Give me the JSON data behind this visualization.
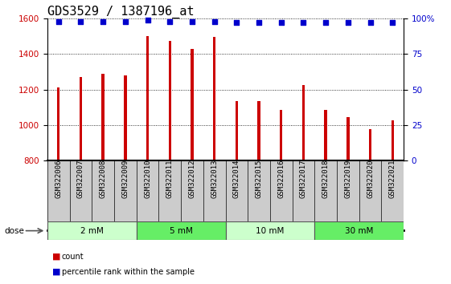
{
  "title": "GDS3529 / 1387196_at",
  "samples": [
    "GSM322006",
    "GSM322007",
    "GSM322008",
    "GSM322009",
    "GSM322010",
    "GSM322011",
    "GSM322012",
    "GSM322013",
    "GSM322014",
    "GSM322015",
    "GSM322016",
    "GSM322017",
    "GSM322018",
    "GSM322019",
    "GSM322020",
    "GSM322021"
  ],
  "counts": [
    1210,
    1270,
    1290,
    1280,
    1500,
    1475,
    1430,
    1495,
    1135,
    1135,
    1085,
    1225,
    1085,
    1045,
    975,
    1025
  ],
  "percentiles": [
    98,
    98,
    98,
    98,
    99,
    98,
    98,
    98,
    97,
    97,
    97,
    97,
    97,
    97,
    97,
    97
  ],
  "bar_color": "#cc0000",
  "dot_color": "#0000cc",
  "ylim_left": [
    800,
    1600
  ],
  "ylim_right": [
    0,
    100
  ],
  "yticks_left": [
    800,
    1000,
    1200,
    1400,
    1600
  ],
  "yticks_right": [
    0,
    25,
    50,
    75,
    100
  ],
  "dose_groups": [
    {
      "label": "2 mM",
      "start": 0,
      "end": 4,
      "color": "#ccffcc"
    },
    {
      "label": "5 mM",
      "start": 4,
      "end": 8,
      "color": "#66ee66"
    },
    {
      "label": "10 mM",
      "start": 8,
      "end": 12,
      "color": "#ccffcc"
    },
    {
      "label": "30 mM",
      "start": 12,
      "end": 16,
      "color": "#66ee66"
    }
  ],
  "dose_label": "dose",
  "bar_width": 0.12,
  "bg_color": "#cccccc",
  "plot_bg": "#ffffff",
  "grid_color": "#000000",
  "tick_label_color_left": "#cc0000",
  "tick_label_color_right": "#0000cc",
  "title_fontsize": 11,
  "label_fontsize": 7.5,
  "tick_fontsize": 7.5,
  "gsm_fontsize": 6.5,
  "dot_size": 25,
  "legend_items": [
    {
      "label": "count",
      "color": "#cc0000"
    },
    {
      "label": "percentile rank within the sample",
      "color": "#0000cc"
    }
  ]
}
